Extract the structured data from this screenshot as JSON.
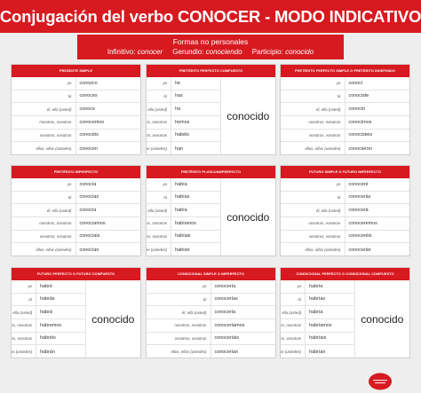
{
  "title": "Conjugación del verbo CONOCER - MODO INDICATIVO",
  "formas": {
    "heading": "Formas no personales",
    "infinitivo_label": "Infinitivo:",
    "infinitivo_stem": "conoc",
    "infinitivo_end": "er",
    "gerundio_label": "Gerundio:",
    "gerundio_stem": "conoc",
    "gerundio_end": "iendo",
    "participio_label": "Participio:",
    "participio_stem": "conoc",
    "participio_end": "ido"
  },
  "pronouns": [
    "yo",
    "tú",
    "él, ella (usted)",
    "nosotros, nosotras",
    "vosotros, vosotras",
    "ellos, ellas (ustedes)"
  ],
  "participle": "conocido",
  "tenses": {
    "presente": {
      "title": "Presente simple",
      "forms": [
        "conozco",
        "conoces",
        "conoce",
        "conocemos",
        "conocéis",
        "conocen"
      ]
    },
    "pret_perf_comp": {
      "title": "Pretérito perfecto compuesto",
      "aux": [
        "he",
        "has",
        "ha",
        "hemos",
        "habéis",
        "han"
      ]
    },
    "pret_indef": {
      "title": "Pretérito perfecto simple o pretérito indefinido",
      "forms": [
        "conocí",
        "conociste",
        "conoció",
        "conocimos",
        "conocisteis",
        "conocieron"
      ]
    },
    "imperfecto": {
      "title": "Pretérito imperfecto",
      "forms": [
        "conocía",
        "conocías",
        "conocía",
        "conocíamos",
        "conocíais",
        "conocían"
      ]
    },
    "pluscuam": {
      "title": "Pretérito pluscuamperfecto",
      "aux": [
        "había",
        "habías",
        "había",
        "habíamos",
        "habíais",
        "habían"
      ]
    },
    "futuro": {
      "title": "Futuro simple o futuro imperfecto",
      "forms": [
        "conoceré",
        "conocerás",
        "conocerá",
        "conoceremos",
        "conoceréis",
        "conocerán"
      ]
    },
    "fut_perf": {
      "title": "Futuro perfecto o futuro compuesto",
      "aux": [
        "habré",
        "habrás",
        "habrá",
        "habremos",
        "habréis",
        "habrán"
      ]
    },
    "condicional": {
      "title": "Condicional simple o imperfecto",
      "forms": [
        "conocería",
        "conocerías",
        "conocería",
        "conoceríamos",
        "conoceríais",
        "conocerían"
      ]
    },
    "cond_perf": {
      "title": "Condicional perfecto o condicional compuesto",
      "aux": [
        "habría",
        "habrías",
        "habría",
        "habríamos",
        "habríais",
        "habrían"
      ]
    }
  },
  "logo": {
    "color": "#d71920"
  }
}
